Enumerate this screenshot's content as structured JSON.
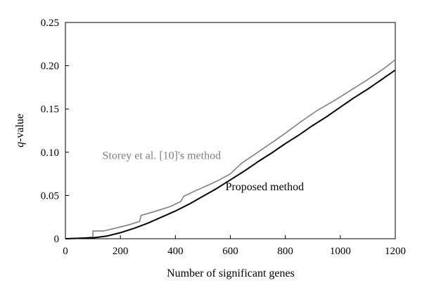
{
  "chart_data": {
    "type": "line",
    "title": "",
    "xlabel": "Number of significant genes",
    "ylabel_italic": "q",
    "ylabel_rest": "-value",
    "xlim": [
      0,
      1200
    ],
    "ylim": [
      0,
      0.25
    ],
    "x_ticks": [
      0,
      200,
      400,
      600,
      800,
      1000,
      1200
    ],
    "y_ticks": [
      0,
      0.05,
      0.1,
      0.15,
      0.2,
      0.25
    ],
    "x_tick_labels": [
      "0",
      "200",
      "400",
      "600",
      "800",
      "1000",
      "1200"
    ],
    "y_tick_labels": [
      "0",
      "0.05",
      "0.10",
      "0.15",
      "0.20",
      "0.25"
    ],
    "grid": false,
    "series": [
      {
        "name": "Storey et al. [10]'s method",
        "color": "#808080",
        "points": [
          [
            0,
            0
          ],
          [
            70,
            0.001
          ],
          [
            100,
            0.002
          ],
          [
            100,
            0.009
          ],
          [
            140,
            0.009
          ],
          [
            180,
            0.012
          ],
          [
            230,
            0.016
          ],
          [
            270,
            0.02
          ],
          [
            275,
            0.027
          ],
          [
            320,
            0.031
          ],
          [
            380,
            0.037
          ],
          [
            420,
            0.043
          ],
          [
            430,
            0.049
          ],
          [
            470,
            0.055
          ],
          [
            520,
            0.062
          ],
          [
            560,
            0.068
          ],
          [
            600,
            0.075
          ],
          [
            640,
            0.087
          ],
          [
            700,
            0.1
          ],
          [
            760,
            0.113
          ],
          [
            800,
            0.122
          ],
          [
            860,
            0.136
          ],
          [
            920,
            0.149
          ],
          [
            980,
            0.16
          ],
          [
            1040,
            0.172
          ],
          [
            1100,
            0.184
          ],
          [
            1160,
            0.197
          ],
          [
            1200,
            0.207
          ]
        ]
      },
      {
        "name": "Proposed method",
        "color": "#000000",
        "points": [
          [
            0,
            0
          ],
          [
            100,
            0.001
          ],
          [
            150,
            0.003
          ],
          [
            200,
            0.007
          ],
          [
            250,
            0.012
          ],
          [
            300,
            0.018
          ],
          [
            350,
            0.025
          ],
          [
            400,
            0.032
          ],
          [
            450,
            0.04
          ],
          [
            500,
            0.049
          ],
          [
            550,
            0.058
          ],
          [
            600,
            0.068
          ],
          [
            650,
            0.078
          ],
          [
            700,
            0.089
          ],
          [
            750,
            0.099
          ],
          [
            800,
            0.11
          ],
          [
            850,
            0.12
          ],
          [
            900,
            0.131
          ],
          [
            950,
            0.141
          ],
          [
            1000,
            0.152
          ],
          [
            1050,
            0.163
          ],
          [
            1100,
            0.173
          ],
          [
            1150,
            0.184
          ],
          [
            1200,
            0.195
          ]
        ]
      }
    ],
    "annotations": [
      {
        "text": "Storey et al. [10]'s method",
        "series": 0,
        "at": [
          350,
          0.092
        ],
        "anchor": "middle",
        "color": "#808080"
      },
      {
        "text": "Proposed method",
        "series": 1,
        "at": [
          725,
          0.056
        ],
        "anchor": "middle",
        "color": "#000000"
      }
    ]
  }
}
